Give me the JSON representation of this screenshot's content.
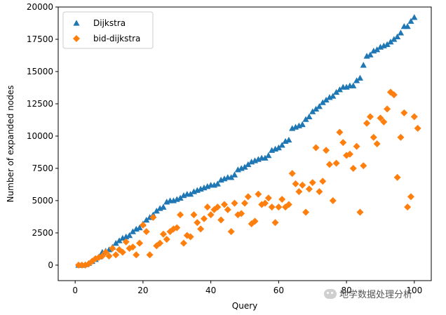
{
  "chart_data": {
    "type": "scatter",
    "title": "",
    "xlabel": "Query",
    "ylabel": "Number of expanded nodes",
    "xlim": [
      -5,
      105
    ],
    "ylim": [
      -1200,
      20000
    ],
    "xticks": [
      0,
      20,
      40,
      60,
      80,
      100
    ],
    "yticks": [
      0,
      2500,
      5000,
      7500,
      10000,
      12500,
      15000,
      17500,
      20000
    ],
    "grid": false,
    "legend": "top-left",
    "series": [
      {
        "name": "Dijkstra",
        "marker": "triangle",
        "color": "#1f77b4",
        "points": [
          [
            1,
            0
          ],
          [
            2,
            0
          ],
          [
            3,
            50
          ],
          [
            4,
            150
          ],
          [
            5,
            300
          ],
          [
            6,
            450
          ],
          [
            7,
            650
          ],
          [
            8,
            1000
          ],
          [
            9,
            1100
          ],
          [
            10,
            1200
          ],
          [
            11,
            1400
          ],
          [
            12,
            1700
          ],
          [
            13,
            1900
          ],
          [
            14,
            2100
          ],
          [
            15,
            2200
          ],
          [
            16,
            2300
          ],
          [
            17,
            2600
          ],
          [
            18,
            2800
          ],
          [
            19,
            2900
          ],
          [
            20,
            3200
          ],
          [
            21,
            3500
          ],
          [
            22,
            3700
          ],
          [
            23,
            3900
          ],
          [
            24,
            4200
          ],
          [
            25,
            4400
          ],
          [
            26,
            4500
          ],
          [
            27,
            4900
          ],
          [
            28,
            5000
          ],
          [
            29,
            5000
          ],
          [
            30,
            5100
          ],
          [
            31,
            5200
          ],
          [
            32,
            5400
          ],
          [
            33,
            5500
          ],
          [
            34,
            5500
          ],
          [
            35,
            5700
          ],
          [
            36,
            5800
          ],
          [
            37,
            5900
          ],
          [
            38,
            6000
          ],
          [
            39,
            6100
          ],
          [
            40,
            6200
          ],
          [
            41,
            6200
          ],
          [
            42,
            6300
          ],
          [
            43,
            6600
          ],
          [
            44,
            6700
          ],
          [
            45,
            6800
          ],
          [
            46,
            6800
          ],
          [
            47,
            7000
          ],
          [
            48,
            7400
          ],
          [
            49,
            7500
          ],
          [
            50,
            7600
          ],
          [
            51,
            7800
          ],
          [
            52,
            8000
          ],
          [
            53,
            8100
          ],
          [
            54,
            8200
          ],
          [
            55,
            8300
          ],
          [
            56,
            8300
          ],
          [
            57,
            8500
          ],
          [
            58,
            8900
          ],
          [
            59,
            9000
          ],
          [
            60,
            9100
          ],
          [
            61,
            9300
          ],
          [
            62,
            9600
          ],
          [
            63,
            9700
          ],
          [
            64,
            10600
          ],
          [
            65,
            10700
          ],
          [
            66,
            10800
          ],
          [
            67,
            10900
          ],
          [
            68,
            11300
          ],
          [
            69,
            11500
          ],
          [
            70,
            11900
          ],
          [
            71,
            12100
          ],
          [
            72,
            12300
          ],
          [
            73,
            12600
          ],
          [
            74,
            12800
          ],
          [
            75,
            13000
          ],
          [
            76,
            13100
          ],
          [
            77,
            13400
          ],
          [
            78,
            13600
          ],
          [
            79,
            13800
          ],
          [
            80,
            13800
          ],
          [
            81,
            13900
          ],
          [
            82,
            13900
          ],
          [
            83,
            14300
          ],
          [
            84,
            14500
          ],
          [
            85,
            15500
          ],
          [
            86,
            16200
          ],
          [
            87,
            16300
          ],
          [
            88,
            16600
          ],
          [
            89,
            16700
          ],
          [
            90,
            16900
          ],
          [
            91,
            17000
          ],
          [
            92,
            17100
          ],
          [
            93,
            17300
          ],
          [
            94,
            17500
          ],
          [
            95,
            17700
          ],
          [
            96,
            18000
          ],
          [
            97,
            18500
          ],
          [
            98,
            18500
          ],
          [
            99,
            18900
          ],
          [
            100,
            19200
          ]
        ]
      },
      {
        "name": "bid-dijkstra",
        "marker": "diamond",
        "color": "#ff7f0e",
        "points": [
          [
            1,
            0
          ],
          [
            2,
            0
          ],
          [
            3,
            0
          ],
          [
            4,
            100
          ],
          [
            5,
            300
          ],
          [
            6,
            500
          ],
          [
            7,
            600
          ],
          [
            8,
            700
          ],
          [
            9,
            1000
          ],
          [
            10,
            700
          ],
          [
            11,
            1300
          ],
          [
            12,
            800
          ],
          [
            13,
            1200
          ],
          [
            14,
            1000
          ],
          [
            15,
            1800
          ],
          [
            16,
            1300
          ],
          [
            17,
            1400
          ],
          [
            18,
            800
          ],
          [
            19,
            1700
          ],
          [
            20,
            3100
          ],
          [
            21,
            2600
          ],
          [
            22,
            800
          ],
          [
            23,
            3700
          ],
          [
            24,
            1500
          ],
          [
            25,
            1700
          ],
          [
            26,
            2400
          ],
          [
            27,
            2000
          ],
          [
            28,
            2600
          ],
          [
            29,
            2800
          ],
          [
            30,
            2900
          ],
          [
            31,
            3900
          ],
          [
            32,
            1700
          ],
          [
            33,
            2300
          ],
          [
            34,
            2200
          ],
          [
            35,
            3900
          ],
          [
            36,
            3300
          ],
          [
            37,
            2800
          ],
          [
            38,
            3600
          ],
          [
            39,
            4500
          ],
          [
            40,
            3900
          ],
          [
            41,
            4300
          ],
          [
            42,
            4500
          ],
          [
            43,
            3500
          ],
          [
            44,
            4700
          ],
          [
            45,
            4300
          ],
          [
            46,
            2600
          ],
          [
            47,
            4800
          ],
          [
            48,
            3900
          ],
          [
            49,
            4000
          ],
          [
            50,
            4800
          ],
          [
            51,
            5300
          ],
          [
            52,
            3200
          ],
          [
            53,
            3400
          ],
          [
            54,
            5500
          ],
          [
            55,
            4700
          ],
          [
            56,
            4800
          ],
          [
            57,
            5200
          ],
          [
            58,
            4500
          ],
          [
            59,
            3300
          ],
          [
            60,
            4500
          ],
          [
            61,
            5100
          ],
          [
            62,
            4500
          ],
          [
            63,
            4700
          ],
          [
            64,
            7100
          ],
          [
            65,
            6300
          ],
          [
            66,
            5700
          ],
          [
            67,
            6200
          ],
          [
            68,
            4100
          ],
          [
            69,
            5900
          ],
          [
            70,
            6400
          ],
          [
            71,
            9100
          ],
          [
            72,
            5700
          ],
          [
            73,
            6500
          ],
          [
            74,
            8900
          ],
          [
            75,
            7800
          ],
          [
            76,
            5000
          ],
          [
            77,
            7900
          ],
          [
            78,
            10300
          ],
          [
            79,
            9500
          ],
          [
            80,
            8500
          ],
          [
            81,
            8600
          ],
          [
            82,
            7500
          ],
          [
            83,
            9200
          ],
          [
            84,
            4100
          ],
          [
            85,
            7700
          ],
          [
            86,
            11000
          ],
          [
            87,
            11500
          ],
          [
            88,
            9900
          ],
          [
            89,
            9400
          ],
          [
            90,
            11400
          ],
          [
            91,
            11100
          ],
          [
            92,
            12100
          ],
          [
            93,
            13400
          ],
          [
            94,
            13200
          ],
          [
            95,
            6800
          ],
          [
            96,
            9900
          ],
          [
            97,
            11800
          ],
          [
            98,
            4500
          ],
          [
            99,
            5300
          ],
          [
            100,
            11500
          ],
          [
            101,
            10600
          ]
        ]
      }
    ]
  },
  "watermark": {
    "text": "地学数据处理分析",
    "icon": "wechat-icon"
  }
}
